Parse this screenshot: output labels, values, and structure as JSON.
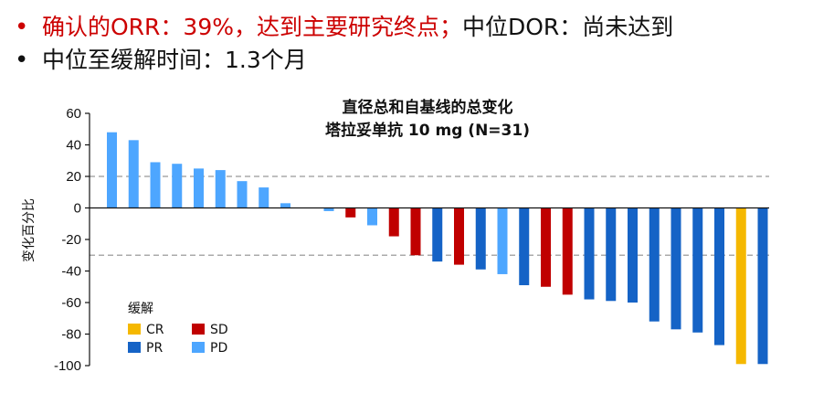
{
  "header": {
    "line1_part1": "确认的ORR：39%，达到主要研究终点；",
    "line1_part2": "中位DOR：尚未达到",
    "line2": "中位至缓解时间：1.3个月",
    "bullet_char": "•"
  },
  "chart_data": {
    "type": "bar",
    "title_line1": "直径总和自基线的总变化",
    "title_line2": "塔拉妥单抗 10 mg (N=31)",
    "ylabel": "变化百分比",
    "xlabel": "",
    "ylim": [
      -100,
      60
    ],
    "yticks": [
      60,
      40,
      20,
      0,
      -20,
      -40,
      -60,
      -80,
      -100
    ],
    "ytick_labels": [
      "60",
      "40",
      "20",
      "0",
      "-20",
      "-40",
      "-60",
      "-80",
      "-100"
    ],
    "reference_lines": [
      20,
      -30
    ],
    "legend_title": "缓解",
    "colors": {
      "CR": "#f5b800",
      "PR": "#1563c6",
      "SD": "#c00000",
      "PD": "#4da6ff"
    },
    "legend": [
      {
        "key": "CR",
        "label": "CR"
      },
      {
        "key": "SD",
        "label": "SD"
      },
      {
        "key": "PR",
        "label": "PR"
      },
      {
        "key": "PD",
        "label": "PD"
      }
    ],
    "values": [
      48,
      43,
      29,
      28,
      25,
      24,
      17,
      13,
      3,
      -2,
      -6,
      -11,
      -18,
      -30,
      -34,
      -36,
      -39,
      -42,
      -49,
      -50,
      -55,
      -58,
      -59,
      -60,
      -72,
      -77,
      -79,
      -87,
      -99,
      -99
    ],
    "responses": [
      "PD",
      "PD",
      "PD",
      "PD",
      "PD",
      "PD",
      "PD",
      "PD",
      "PD",
      "PD",
      "SD",
      "PD",
      "SD",
      "SD",
      "PR",
      "SD",
      "PR",
      "PD",
      "PR",
      "SD",
      "SD",
      "PR",
      "PR",
      "PR",
      "PR",
      "PR",
      "PR",
      "PR",
      "CR",
      "PR"
    ],
    "slots": [
      0,
      1,
      2,
      3,
      4,
      5,
      6,
      7,
      8,
      10,
      11,
      12,
      13,
      14,
      15,
      16,
      17,
      18,
      19,
      20,
      21,
      22,
      23,
      24,
      25,
      26,
      27,
      28,
      29,
      30
    ]
  }
}
